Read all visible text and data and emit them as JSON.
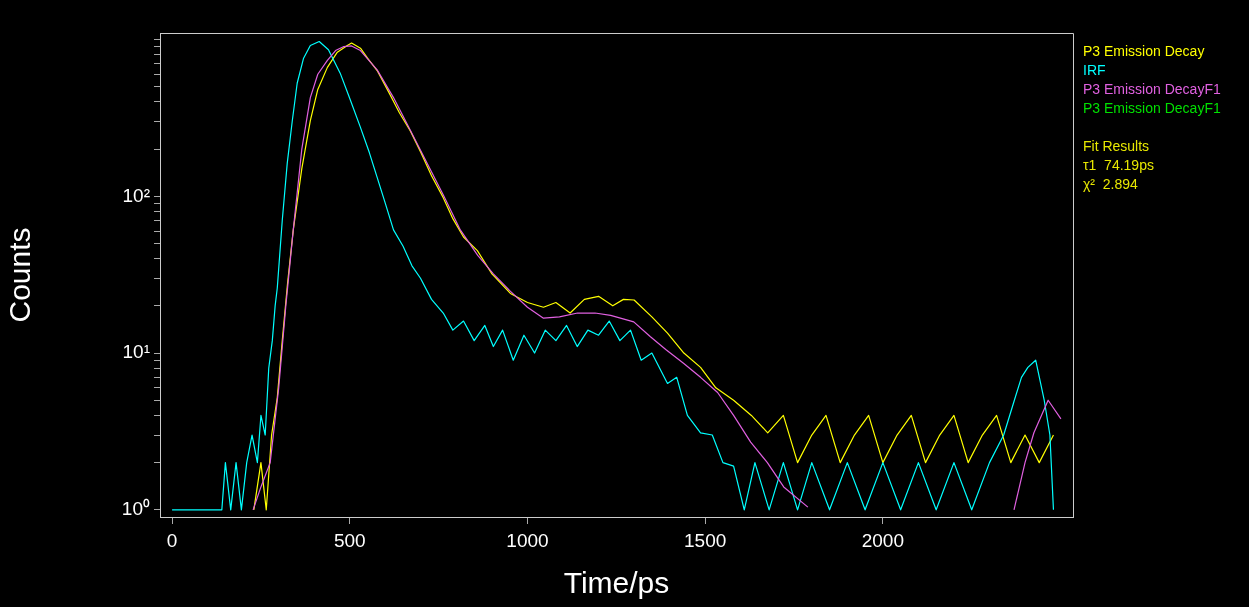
{
  "chart_data": {
    "type": "line",
    "xlabel": "Time/ps",
    "ylabel": "Counts",
    "log": "y",
    "legend": "right",
    "xlim": [
      -34,
      2535
    ],
    "xticks": [
      0,
      500,
      1000,
      1500,
      2000
    ],
    "ylim": [
      0.9,
      1100
    ],
    "yticks": [
      {
        "value": 1,
        "label": "10⁰"
      },
      {
        "value": 2,
        "label": null
      },
      {
        "value": 3,
        "label": null
      },
      {
        "value": 4,
        "label": null
      },
      {
        "value": 5,
        "label": null
      },
      {
        "value": 6,
        "label": null
      },
      {
        "value": 7,
        "label": null
      },
      {
        "value": 8,
        "label": null
      },
      {
        "value": 9,
        "label": null
      },
      {
        "value": 10,
        "label": "10¹"
      },
      {
        "value": 20,
        "label": null
      },
      {
        "value": 30,
        "label": null
      },
      {
        "value": 40,
        "label": null
      },
      {
        "value": 50,
        "label": null
      },
      {
        "value": 60,
        "label": null
      },
      {
        "value": 70,
        "label": null
      },
      {
        "value": 80,
        "label": null
      },
      {
        "value": 90,
        "label": null
      },
      {
        "value": 100,
        "label": "10²"
      },
      {
        "value": 200,
        "label": null
      },
      {
        "value": 300,
        "label": null
      },
      {
        "value": 400,
        "label": null
      },
      {
        "value": 500,
        "label": null
      },
      {
        "value": 600,
        "label": null
      },
      {
        "value": 700,
        "label": null
      },
      {
        "value": 800,
        "label": null
      },
      {
        "value": 900,
        "label": null
      },
      {
        "value": 1000,
        "label": null
      }
    ],
    "annotations": [
      "Fit Results",
      "τ1  74.19ps",
      "χ²  2.894"
    ],
    "series": [
      {
        "name": "P3 Emission Decay",
        "color": "#ffff00",
        "x": [
          230,
          250,
          265,
          280,
          296,
          310,
          325,
          341,
          365,
          389,
          410,
          437,
          465,
          493,
          505,
          530,
          550,
          577,
          610,
          640,
          670,
          700,
          730,
          763,
          790,
          820,
          859,
          900,
          952,
          1000,
          1045,
          1080,
          1120,
          1160,
          1200,
          1240,
          1270,
          1300,
          1350,
          1394,
          1440,
          1487,
          1530,
          1580,
          1630,
          1676,
          1720,
          1760,
          1800,
          1840,
          1880,
          1920,
          1960,
          2000,
          2040,
          2080,
          2120,
          2160,
          2200,
          2240,
          2280,
          2320,
          2360,
          2400,
          2440,
          2480
        ],
        "values": [
          1,
          2,
          1,
          3,
          5.2,
          12,
          28,
          61,
          150,
          304,
          480,
          664,
          830,
          915,
          950,
          880,
          760,
          634,
          460,
          340,
          262,
          190,
          135,
          98,
          72,
          55,
          45,
          32,
          24,
          21,
          19.6,
          21,
          18,
          22,
          23,
          20,
          22,
          21.8,
          17,
          13.4,
          10,
          8.1,
          6,
          5,
          4,
          3.1,
          4,
          2,
          3,
          4,
          2,
          3,
          4,
          2,
          3,
          4,
          2,
          3,
          4,
          2,
          3,
          4,
          2,
          3,
          2,
          3
        ]
      },
      {
        "name": "IRF",
        "color": "#00ffff",
        "x": [
          0,
          140,
          150,
          165,
          180,
          195,
          210,
          225,
          240,
          250,
          262,
          272,
          282,
          290,
          296,
          310,
          324,
          338,
          352,
          370,
          389,
          414,
          440,
          473,
          500,
          530,
          555,
          577,
          600,
          623,
          650,
          675,
          699,
          730,
          763,
          790,
          820,
          850,
          880,
          904,
          930,
          960,
          990,
          1020,
          1050,
          1080,
          1110,
          1140,
          1170,
          1200,
          1230,
          1260,
          1290,
          1320,
          1350,
          1394,
          1420,
          1450,
          1487,
          1520,
          1550,
          1580,
          1610,
          1640,
          1680,
          1720,
          1760,
          1800,
          1850,
          1900,
          1950,
          2000,
          2050,
          2100,
          2150,
          2200,
          2250,
          2300,
          2340,
          2370,
          2390,
          2408,
          2430,
          2454,
          2470,
          2480
        ],
        "values": [
          1,
          1,
          2,
          1,
          2,
          1,
          2,
          3,
          2,
          4,
          3,
          8,
          12,
          20,
          26,
          70,
          162,
          300,
          526,
          760,
          915,
          970,
          860,
          610,
          420,
          275,
          190,
          132,
          90,
          61,
          48,
          36,
          30,
          22,
          18,
          14,
          16,
          12,
          15,
          11,
          14,
          9,
          13,
          10,
          14,
          12,
          15,
          11,
          14,
          13,
          16,
          12,
          14,
          9,
          10,
          6.4,
          7,
          4,
          3.1,
          3,
          2,
          1.9,
          1,
          2,
          1,
          2,
          1,
          2,
          1,
          2,
          1,
          2,
          1,
          2,
          1,
          2,
          1,
          2,
          3,
          5,
          7,
          8.1,
          9,
          5,
          3,
          1
        ]
      },
      {
        "name": "P3 Emission DecayF1",
        "color": "#e060e0",
        "x": [
          228,
          250,
          276,
          300,
          320,
          341,
          365,
          389,
          410,
          437,
          460,
          482,
          505,
          530,
          577,
          623,
          670,
          718,
          765,
          811,
          860,
          904,
          950,
          1000,
          1045,
          1090,
          1141,
          1190,
          1234,
          1299,
          1346,
          1390,
          1439,
          1487,
          1535,
          1580,
          1628,
          1675,
          1721,
          1789,
          1800,
          2369,
          2400,
          2425,
          2465,
          2501
        ],
        "values": [
          1,
          1.4,
          2,
          6,
          20,
          61,
          200,
          426,
          600,
          735,
          850,
          900,
          910,
          850,
          640,
          426,
          265,
          162,
          100,
          61,
          42,
          32,
          25,
          19.6,
          16.7,
          17,
          18,
          18,
          17.4,
          15.8,
          12.7,
          10.5,
          8.6,
          7,
          5.6,
          4,
          2.7,
          2,
          1.4,
          1.04,
          null,
          1,
          2,
          3.1,
          5,
          3.8
        ]
      },
      {
        "name": "P3 Emission DecayF1",
        "color": "#00e000"
      }
    ]
  }
}
